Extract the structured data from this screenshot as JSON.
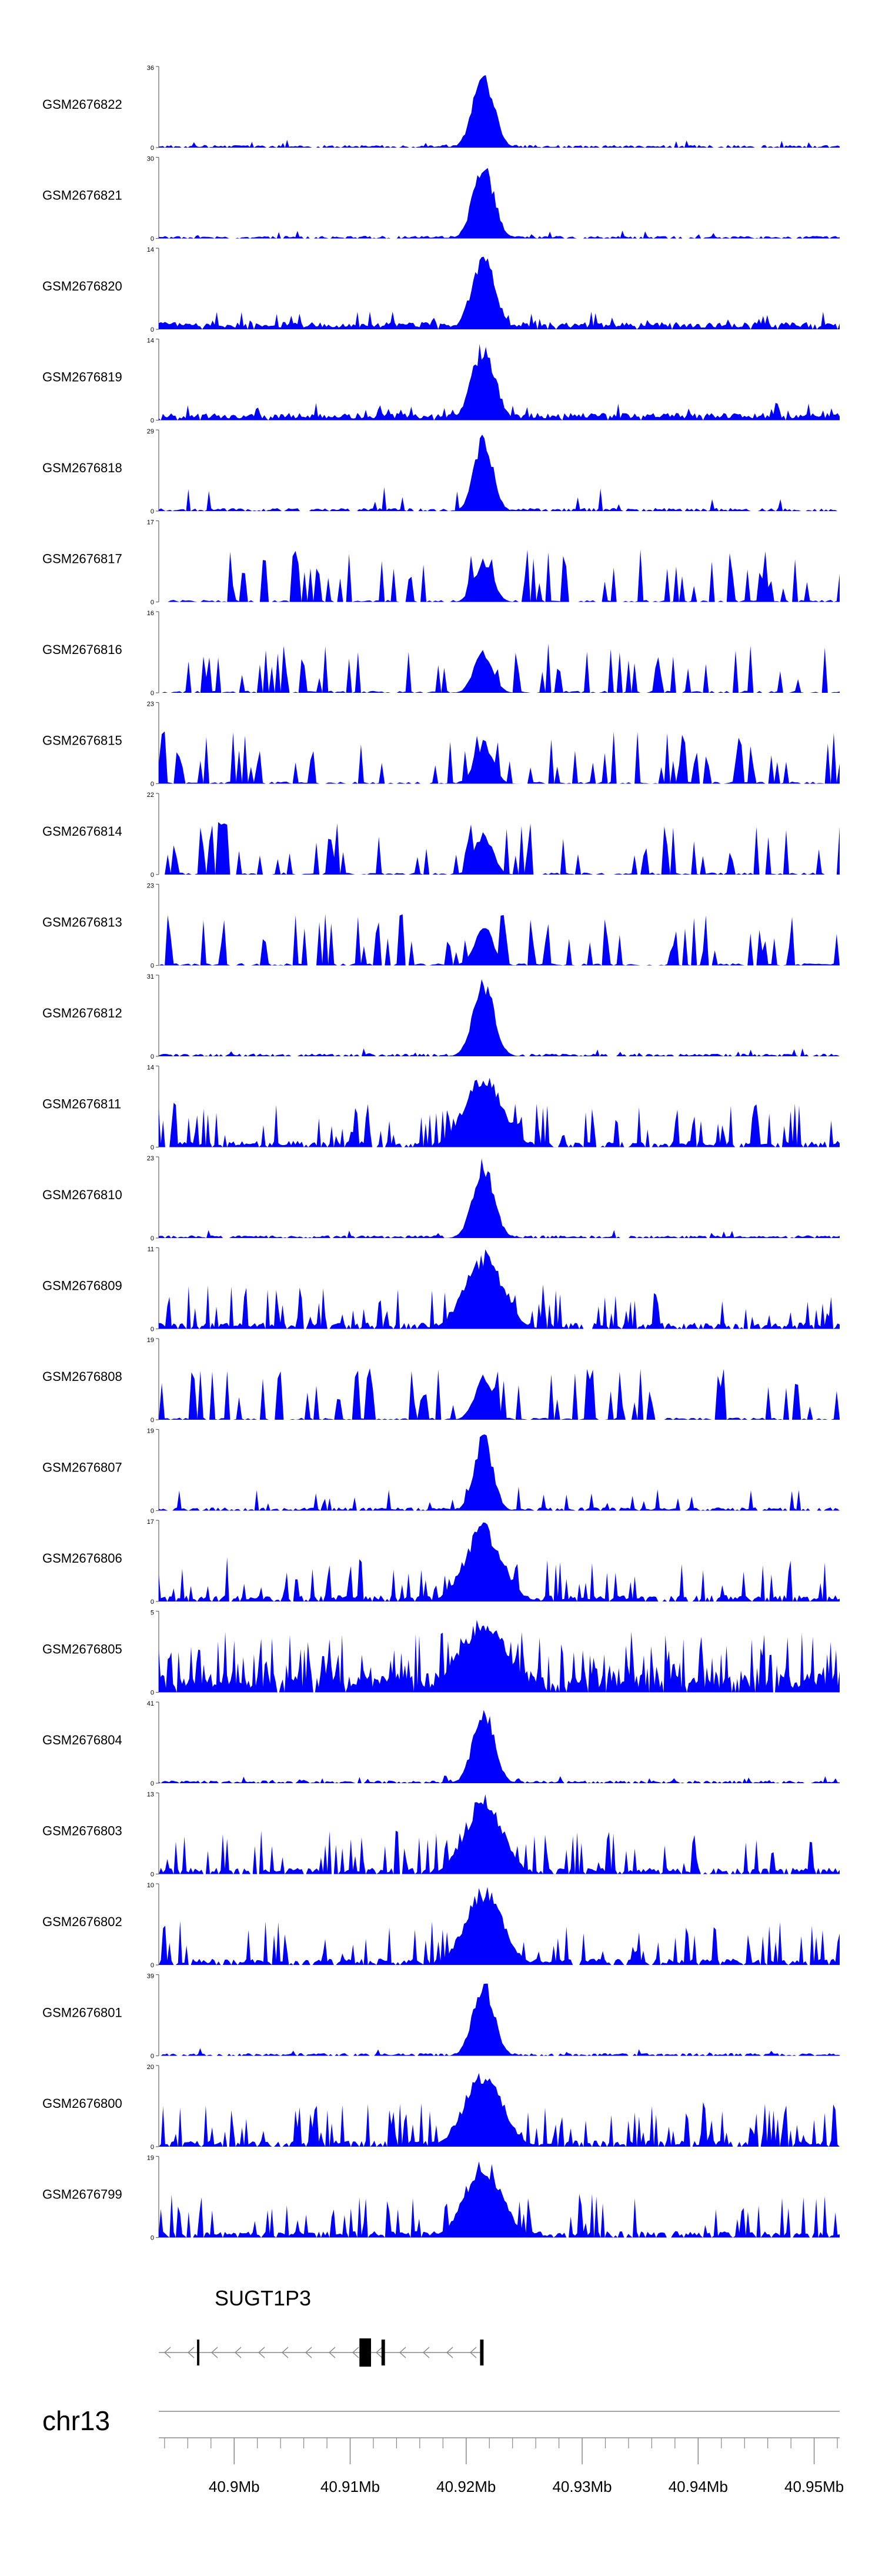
{
  "chart_data": {
    "type": "area",
    "genome": {
      "chromosome": "chr13"
    },
    "x_ticks": [
      "40.9Mb",
      "40.91Mb",
      "40.92Mb",
      "40.93Mb",
      "40.94Mb",
      "40.95Mb"
    ],
    "x_tick_values": [
      40.9,
      40.91,
      40.92,
      40.93,
      40.94,
      40.95
    ],
    "xlim": [
      40.8935,
      40.9522
    ],
    "peak_position": 40.9215,
    "tracks": [
      {
        "name": "GSM2676822",
        "ymax": "36",
        "y_max_value": 36,
        "pattern": "sharp-peak"
      },
      {
        "name": "GSM2676821",
        "ymax": "30",
        "y_max_value": 30,
        "pattern": "sharp-peak"
      },
      {
        "name": "GSM2676820",
        "ymax": "14",
        "y_max_value": 14,
        "pattern": "peak-dense"
      },
      {
        "name": "GSM2676819",
        "ymax": "14",
        "y_max_value": 14,
        "pattern": "peak-dense"
      },
      {
        "name": "GSM2676818",
        "ymax": "29",
        "y_max_value": 29,
        "pattern": "peak-medium"
      },
      {
        "name": "GSM2676817",
        "ymax": "17",
        "y_max_value": 17,
        "pattern": "sparse-spiky"
      },
      {
        "name": "GSM2676816",
        "ymax": "16",
        "y_max_value": 16,
        "pattern": "sparse-spiky"
      },
      {
        "name": "GSM2676815",
        "ymax": "23",
        "y_max_value": 23,
        "pattern": "sparse-spiky"
      },
      {
        "name": "GSM2676814",
        "ymax": "22",
        "y_max_value": 22,
        "pattern": "sparse-spiky"
      },
      {
        "name": "GSM2676813",
        "ymax": "23",
        "y_max_value": 23,
        "pattern": "sparse-spiky"
      },
      {
        "name": "GSM2676812",
        "ymax": "31",
        "y_max_value": 31,
        "pattern": "sharp-peak"
      },
      {
        "name": "GSM2676811",
        "ymax": "14",
        "y_max_value": 14,
        "pattern": "noisy-peak"
      },
      {
        "name": "GSM2676810",
        "ymax": "23",
        "y_max_value": 23,
        "pattern": "sharp-peak"
      },
      {
        "name": "GSM2676809",
        "ymax": "11",
        "y_max_value": 11,
        "pattern": "noisy-peak"
      },
      {
        "name": "GSM2676808",
        "ymax": "19",
        "y_max_value": 19,
        "pattern": "sparse-spiky"
      },
      {
        "name": "GSM2676807",
        "ymax": "19",
        "y_max_value": 19,
        "pattern": "peak-medium"
      },
      {
        "name": "GSM2676806",
        "ymax": "17",
        "y_max_value": 17,
        "pattern": "noisy-peak"
      },
      {
        "name": "GSM2676805",
        "ymax": "5",
        "y_max_value": 5,
        "pattern": "very-noisy"
      },
      {
        "name": "GSM2676804",
        "ymax": "41",
        "y_max_value": 41,
        "pattern": "sharp-peak"
      },
      {
        "name": "GSM2676803",
        "ymax": "13",
        "y_max_value": 13,
        "pattern": "noisy-peak"
      },
      {
        "name": "GSM2676802",
        "ymax": "10",
        "y_max_value": 10,
        "pattern": "noisy-peak"
      },
      {
        "name": "GSM2676801",
        "ymax": "39",
        "y_max_value": 39,
        "pattern": "sharp-peak"
      },
      {
        "name": "GSM2676800",
        "ymax": "20",
        "y_max_value": 20,
        "pattern": "noisy-peak"
      },
      {
        "name": "GSM2676799",
        "ymax": "19",
        "y_max_value": 19,
        "pattern": "noisy-peak"
      }
    ],
    "gene": {
      "name": "SUGT1P3",
      "start": 40.8935,
      "end": 40.9215,
      "strand": "-",
      "exons": [
        [
          40.8968,
          40.897
        ],
        [
          40.9108,
          40.9118
        ],
        [
          40.9127,
          40.913
        ],
        [
          40.9212,
          40.9215
        ]
      ]
    }
  },
  "colors": {
    "signal": "#0000ff",
    "axis": "#666666",
    "gene": "#000000",
    "intron": "#888888"
  }
}
